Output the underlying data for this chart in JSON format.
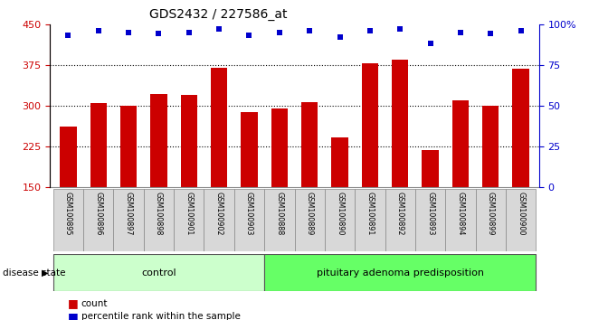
{
  "title": "GDS2432 / 227586_at",
  "samples": [
    "GSM100895",
    "GSM100896",
    "GSM100897",
    "GSM100898",
    "GSM100901",
    "GSM100902",
    "GSM100903",
    "GSM100888",
    "GSM100889",
    "GSM100890",
    "GSM100891",
    "GSM100892",
    "GSM100893",
    "GSM100894",
    "GSM100899",
    "GSM100900"
  ],
  "counts": [
    262,
    305,
    300,
    322,
    320,
    370,
    288,
    295,
    307,
    242,
    378,
    385,
    218,
    310,
    300,
    368
  ],
  "percentiles": [
    93,
    96,
    95,
    94,
    95,
    97,
    93,
    95,
    96,
    92,
    96,
    97,
    88,
    95,
    94,
    96
  ],
  "groups": [
    "control",
    "control",
    "control",
    "control",
    "control",
    "control",
    "control",
    "pituitary adenoma predisposition",
    "pituitary adenoma predisposition",
    "pituitary adenoma predisposition",
    "pituitary adenoma predisposition",
    "pituitary adenoma predisposition",
    "pituitary adenoma predisposition",
    "pituitary adenoma predisposition",
    "pituitary adenoma predisposition",
    "pituitary adenoma predisposition"
  ],
  "ylim_left": [
    150,
    450
  ],
  "ylim_right": [
    0,
    100
  ],
  "yticks_left": [
    150,
    225,
    300,
    375,
    450
  ],
  "yticks_right": [
    0,
    25,
    50,
    75,
    100
  ],
  "bar_color": "#cc0000",
  "dot_color": "#0000cc",
  "grid_color": "#000000",
  "control_color": "#ccffcc",
  "pituitary_color": "#66ff66",
  "bg_color": "#d8d8d8",
  "left_axis_color": "#cc0000",
  "right_axis_color": "#0000cc",
  "legend_count_label": "count",
  "legend_pct_label": "percentile rank within the sample",
  "disease_state_label": "disease state",
  "control_label": "control",
  "pituitary_label": "pituitary adenoma predisposition",
  "n_control": 7,
  "n_pituitary": 9
}
